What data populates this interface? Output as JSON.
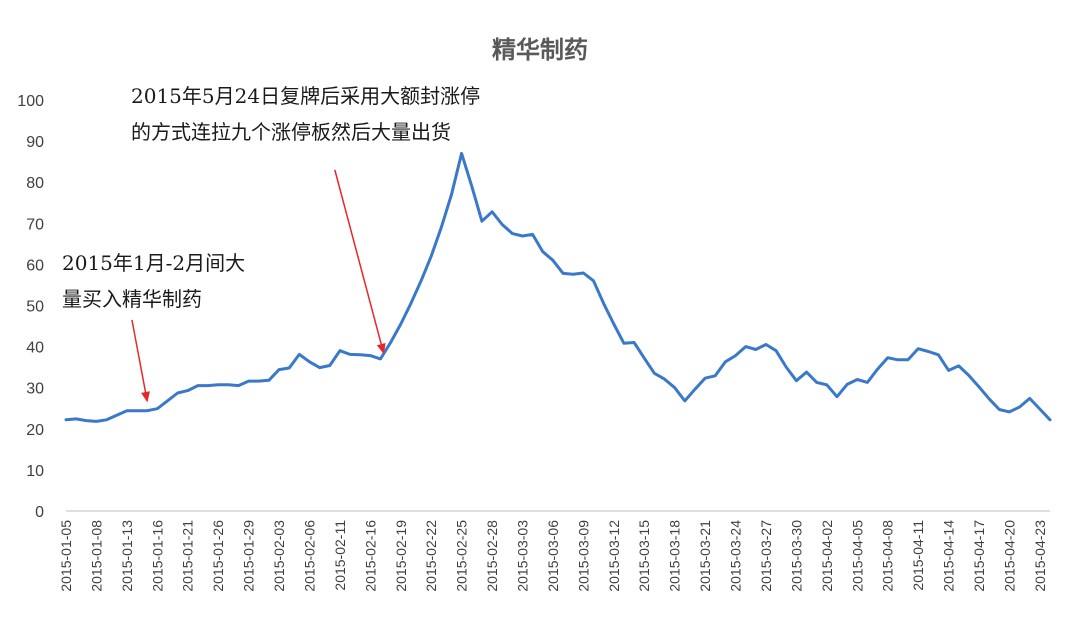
{
  "chart_data": {
    "type": "line",
    "title": "精华制药",
    "xlabel": "",
    "ylabel": "",
    "ylim": [
      0,
      100
    ],
    "yticks": [
      0,
      10,
      20,
      30,
      40,
      50,
      60,
      70,
      80,
      90,
      100
    ],
    "grid": false,
    "legend": "none",
    "line_color": "#3a78c9",
    "arrow_color": "#e8262b",
    "xtick_labels": [
      "2015-01-05",
      "2015-01-08",
      "2015-01-13",
      "2015-01-16",
      "2015-01-21",
      "2015-01-26",
      "2015-01-29",
      "2015-02-03",
      "2015-02-06",
      "2015-02-11",
      "2015-02-16",
      "2015-02-19",
      "2015-02-22",
      "2015-02-25",
      "2015-02-28",
      "2015-03-03",
      "2015-03-06",
      "2015-03-09",
      "2015-03-12",
      "2015-03-15",
      "2015-03-18",
      "2015-03-21",
      "2015-03-24",
      "2015-03-27",
      "2015-03-30",
      "2015-04-02",
      "2015-04-05",
      "2015-04-08",
      "2015-04-11",
      "2015-04-14",
      "2015-04-17",
      "2015-04-20",
      "2015-04-23"
    ],
    "series": [
      {
        "values": [
          22.2,
          22.4,
          22.0,
          21.8,
          22.2,
          23.3,
          24.4,
          24.4,
          24.4,
          24.9,
          26.8,
          28.7,
          29.3,
          30.5,
          30.5,
          30.7,
          30.7,
          30.5,
          31.6,
          31.6,
          31.8,
          34.4,
          34.8,
          38.1,
          36.3,
          34.9,
          35.4,
          39.0,
          38.1,
          38.0,
          37.8,
          37.0,
          41.0,
          45.5,
          50.5,
          56.0,
          62.0,
          69.0,
          77.0,
          87.0,
          79.0,
          70.5,
          72.8,
          69.7,
          67.5,
          66.9,
          67.3,
          63.1,
          61.0,
          57.8,
          57.6,
          57.9,
          56.0,
          50.5,
          45.5,
          40.8,
          41.0,
          37.2,
          33.5,
          32.1,
          30.0,
          26.8,
          29.6,
          32.3,
          32.9,
          36.3,
          37.8,
          40.0,
          39.3,
          40.5,
          39.0,
          35.0,
          31.7,
          33.8,
          31.3,
          30.7,
          27.8,
          30.8,
          32.0,
          31.3,
          34.5,
          37.3,
          36.8,
          36.8,
          39.5,
          38.8,
          38.0,
          34.2,
          35.3,
          33.0,
          30.2,
          27.3,
          24.7,
          24.1,
          25.3,
          27.4,
          24.8,
          22.2
        ]
      }
    ],
    "annotations": [
      {
        "lines": [
          "2015年1月-2月间大",
          "量买入精华制药"
        ],
        "arrow_tail_index": 6.5,
        "arrow_tail_value": 46.5,
        "arrow_head_index": 8.0,
        "arrow_head_value": 26.8
      },
      {
        "lines": [
          "2015年5月24日复牌后采用大额封涨停",
          "的方式连拉九个涨停板然后大量出货"
        ],
        "arrow_tail_index": 26.5,
        "arrow_tail_value": 83.0,
        "arrow_head_index": 31.3,
        "arrow_head_value": 38.5
      }
    ]
  }
}
